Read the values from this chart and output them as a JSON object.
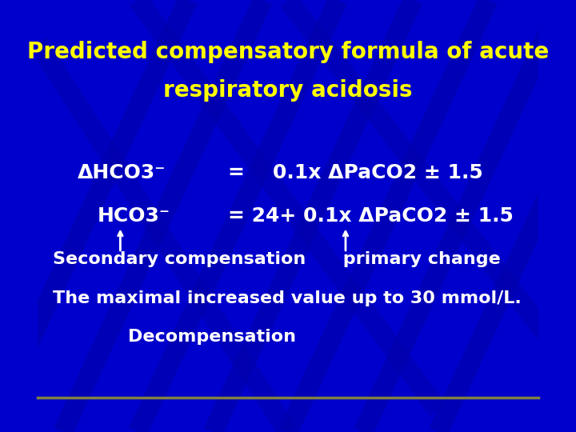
{
  "title_line1": "Predicted compensatory formula of acute",
  "title_line2": "respiratory acidosis",
  "title_color": "#FFFF00",
  "bg_color": "#0000CC",
  "text_color": "#FFFFFF",
  "line1_left": "ΔHCO3⁻",
  "line1_right": "=    0.1x ΔPaCO2 ± 1.5",
  "line2_left": "HCO3⁻",
  "line2_right": "= 24+ 0.1x ΔPaCO2 ± 1.5",
  "line3": "Secondary compensation      primary change",
  "line4": "The maximal increased value up to 30 mmol/L.",
  "line5": "Decompensation",
  "bottom_line_color": "#808040",
  "arrow_color": "#FFFFFF",
  "stripe_color": "#0000AA"
}
